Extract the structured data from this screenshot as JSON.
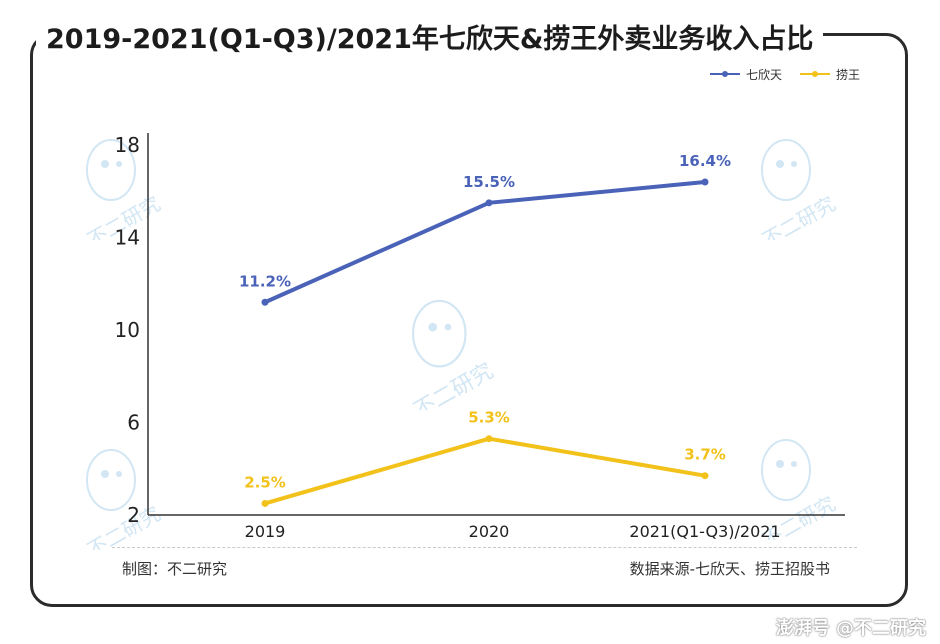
{
  "title": "2019-2021(Q1-Q3)/2021年七欣天&捞王外卖业务收入占比",
  "footer": {
    "left": "制图：不二研究",
    "right": "数据来源-七欣天、捞王招股书"
  },
  "watermark_bar": "澎湃号 @不二研究",
  "watermark_text": "不二研究",
  "chart_data": {
    "type": "line",
    "categories": [
      "2019",
      "2020",
      "2021(Q1-Q3)/2021"
    ],
    "series": [
      {
        "name": "七欣天",
        "values": [
          11.2,
          15.5,
          16.4
        ],
        "labels": [
          "11.2%",
          "15.5%",
          "16.4%"
        ],
        "color": "#4a63b8"
      },
      {
        "name": "捞王",
        "values": [
          2.5,
          5.3,
          3.7
        ],
        "labels": [
          "2.5%",
          "5.3%",
          "3.7%"
        ],
        "color": "#f2c21b"
      }
    ],
    "yticks": [
      "2",
      "6",
      "10",
      "14",
      "18"
    ],
    "ylim": [
      2,
      18
    ],
    "legend": "top-right",
    "grid": false
  }
}
